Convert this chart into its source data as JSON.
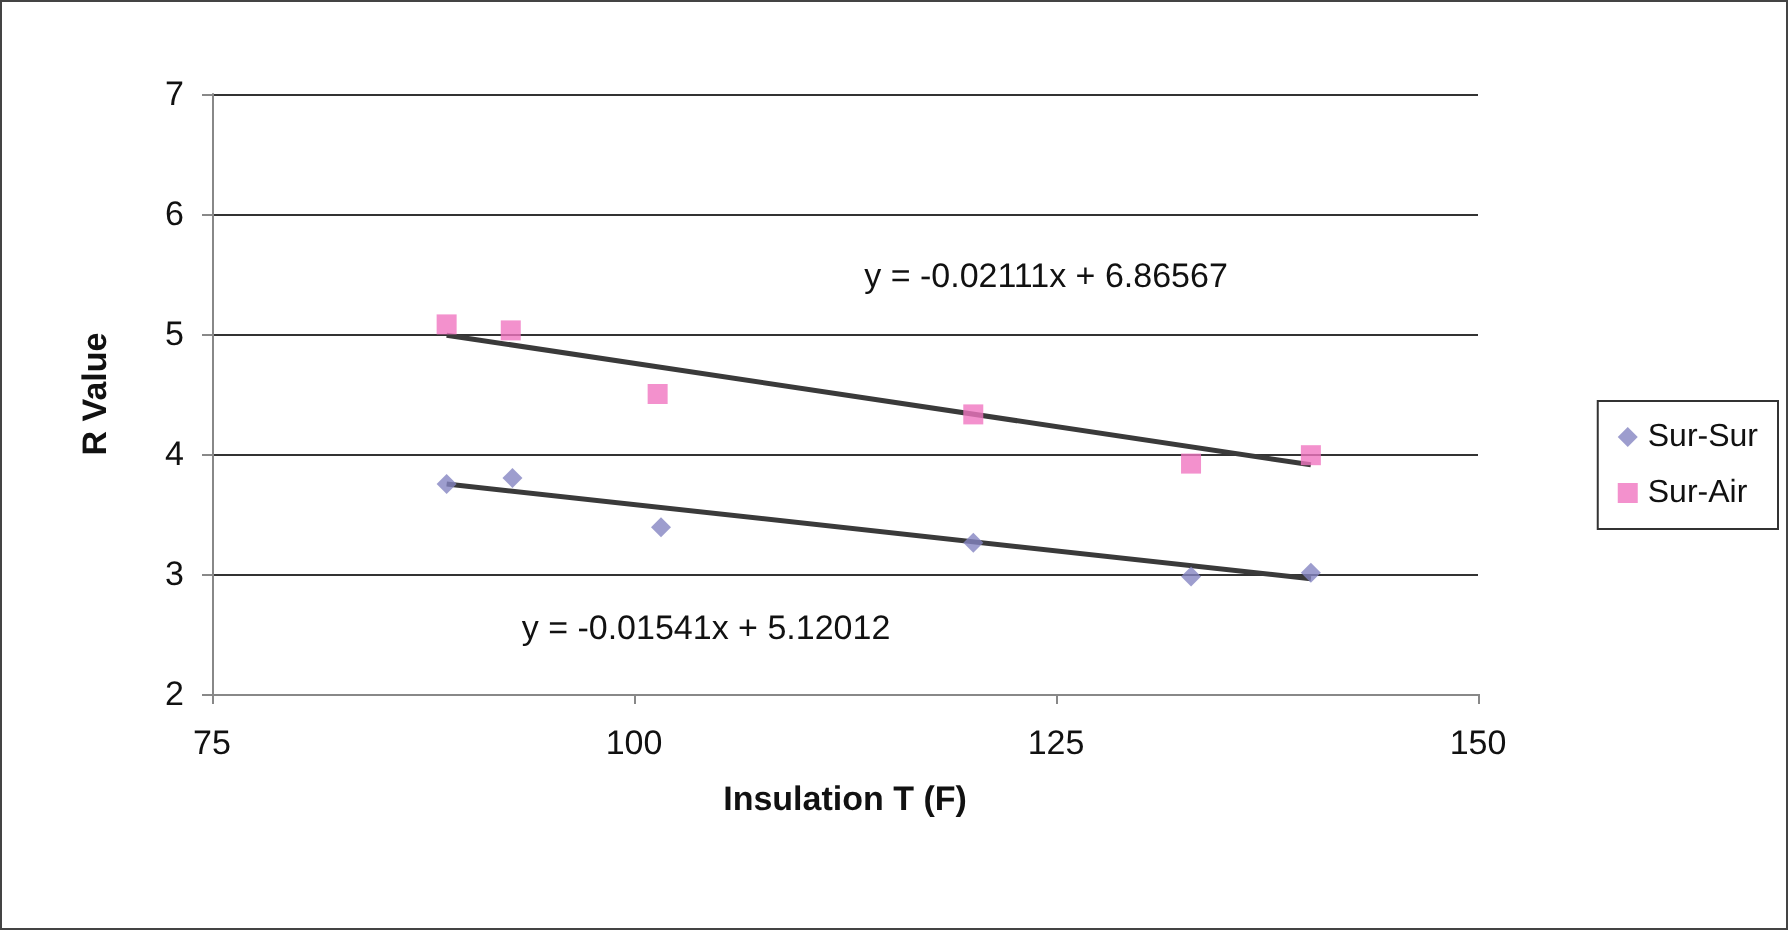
{
  "chart_data": {
    "type": "scatter",
    "xlabel": "Insulation T (F)",
    "ylabel": "R Value",
    "xlim": [
      75,
      150
    ],
    "xticks": [
      75,
      100,
      125,
      150
    ],
    "ylim": [
      2,
      7
    ],
    "yticks": [
      2,
      3,
      4,
      5,
      6,
      7
    ],
    "grid": "y",
    "legend": "right",
    "annotations": [
      "y = -0.02111x + 6.86567",
      "y = -0.01541x + 5.12012"
    ],
    "series": [
      {
        "name": "Sur-Sur",
        "marker": "diamond",
        "color": "#8585c2",
        "x": [
          88.9,
          92.8,
          101.6,
          120.1,
          133.0,
          140.1
        ],
        "values": [
          3.75,
          3.8,
          3.39,
          3.26,
          2.98,
          3.01
        ]
      },
      {
        "name": "Sur-Air",
        "marker": "square",
        "color": "#f075c0",
        "x": [
          88.9,
          92.7,
          101.4,
          120.1,
          133.0,
          140.1
        ],
        "values": [
          5.08,
          5.03,
          4.5,
          4.33,
          3.92,
          3.99
        ]
      },
      {
        "type": "line",
        "marker": "none",
        "color": "#3a3a3a",
        "x": [
          88.9,
          140.1
        ],
        "values": [
          4.99,
          3.91
        ]
      },
      {
        "type": "line",
        "marker": "none",
        "color": "#3a3a3a",
        "x": [
          88.9,
          140.1
        ],
        "values": [
          3.75,
          2.96
        ]
      }
    ]
  }
}
